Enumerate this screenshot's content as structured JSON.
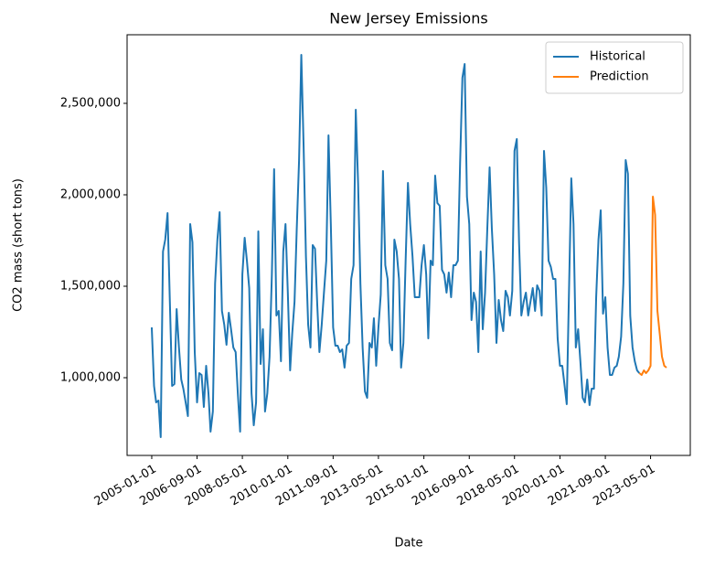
{
  "chart_data": {
    "type": "line",
    "title": "New Jersey Emissions",
    "x_label": "Date",
    "y_label": "CO2 mass (short tons)",
    "legend": "upper right",
    "grid": false,
    "xlim": [
      "2004-02-05",
      "2024-10-15"
    ],
    "xticks": [
      "2005-01-01",
      "2006-09-01",
      "2008-05-01",
      "2010-01-01",
      "2011-09-01",
      "2013-05-01",
      "2015-01-01",
      "2016-09-01",
      "2018-05-01",
      "2020-01-01",
      "2021-09-01",
      "2023-05-01"
    ],
    "ylim": [
      575000,
      2875000
    ],
    "yticks": [
      {
        "value": 1000000,
        "label": "1,000,000"
      },
      {
        "value": 1500000,
        "label": "1,500,000"
      },
      {
        "value": 2000000,
        "label": "2,000,000"
      },
      {
        "value": 2500000,
        "label": "2,500,000"
      }
    ],
    "series": [
      {
        "name": "Historical",
        "color": "#1f77b4",
        "x": [
          "2005-01-01",
          "2005-02-01",
          "2005-03-01",
          "2005-04-01",
          "2005-05-01",
          "2005-06-01",
          "2005-07-01",
          "2005-08-01",
          "2005-09-01",
          "2005-10-01",
          "2005-11-01",
          "2005-12-01",
          "2006-01-01",
          "2006-02-01",
          "2006-03-01",
          "2006-04-01",
          "2006-05-01",
          "2006-06-01",
          "2006-07-01",
          "2006-08-01",
          "2006-09-01",
          "2006-10-01",
          "2006-11-01",
          "2006-12-01",
          "2007-01-01",
          "2007-02-01",
          "2007-03-01",
          "2007-04-01",
          "2007-05-01",
          "2007-06-01",
          "2007-07-01",
          "2007-08-01",
          "2007-09-01",
          "2007-10-01",
          "2007-11-01",
          "2007-12-01",
          "2008-01-01",
          "2008-02-01",
          "2008-03-01",
          "2008-04-01",
          "2008-05-01",
          "2008-06-01",
          "2008-07-01",
          "2008-08-01",
          "2008-09-01",
          "2008-10-01",
          "2008-11-01",
          "2008-12-01",
          "2009-01-01",
          "2009-02-01",
          "2009-03-01",
          "2009-04-01",
          "2009-05-01",
          "2009-06-01",
          "2009-07-01",
          "2009-08-01",
          "2009-09-01",
          "2009-10-01",
          "2009-11-01",
          "2009-12-01",
          "2010-01-01",
          "2010-02-01",
          "2010-03-01",
          "2010-04-01",
          "2010-05-01",
          "2010-06-01",
          "2010-07-01",
          "2010-08-01",
          "2010-09-01",
          "2010-10-01",
          "2010-11-01",
          "2010-12-01",
          "2011-01-01",
          "2011-02-01",
          "2011-03-01",
          "2011-04-01",
          "2011-05-01",
          "2011-06-01",
          "2011-07-01",
          "2011-08-01",
          "2011-09-01",
          "2011-10-01",
          "2011-11-01",
          "2011-12-01",
          "2012-01-01",
          "2012-02-01",
          "2012-03-01",
          "2012-04-01",
          "2012-05-01",
          "2012-06-01",
          "2012-07-01",
          "2012-08-01",
          "2012-09-01",
          "2012-10-01",
          "2012-11-01",
          "2012-12-01",
          "2013-01-01",
          "2013-02-01",
          "2013-03-01",
          "2013-04-01",
          "2013-05-01",
          "2013-06-01",
          "2013-07-01",
          "2013-08-01",
          "2013-09-01",
          "2013-10-01",
          "2013-11-01",
          "2013-12-01",
          "2014-01-01",
          "2014-02-01",
          "2014-03-01",
          "2014-04-01",
          "2014-05-01",
          "2014-06-01",
          "2014-07-01",
          "2014-08-01",
          "2014-09-01",
          "2014-10-01",
          "2014-11-01",
          "2014-12-01",
          "2015-01-01",
          "2015-02-01",
          "2015-03-01",
          "2015-04-01",
          "2015-05-01",
          "2015-06-01",
          "2015-07-01",
          "2015-08-01",
          "2015-09-01",
          "2015-10-01",
          "2015-11-01",
          "2015-12-01",
          "2016-01-01",
          "2016-02-01",
          "2016-03-01",
          "2016-04-01",
          "2016-05-01",
          "2016-06-01",
          "2016-07-01",
          "2016-08-01",
          "2016-09-01",
          "2016-10-01",
          "2016-11-01",
          "2016-12-01",
          "2017-01-01",
          "2017-02-01",
          "2017-03-01",
          "2017-04-01",
          "2017-05-01",
          "2017-06-01",
          "2017-07-01",
          "2017-08-01",
          "2017-09-01",
          "2017-10-01",
          "2017-11-01",
          "2017-12-01",
          "2018-01-01",
          "2018-02-01",
          "2018-03-01",
          "2018-04-01",
          "2018-05-01",
          "2018-06-01",
          "2018-07-01",
          "2018-08-01",
          "2018-09-01",
          "2018-10-01",
          "2018-11-01",
          "2018-12-01",
          "2019-01-01",
          "2019-02-01",
          "2019-03-01",
          "2019-04-01",
          "2019-05-01",
          "2019-06-01",
          "2019-07-01",
          "2019-08-01",
          "2019-09-01",
          "2019-10-01",
          "2019-11-01",
          "2019-12-01",
          "2020-01-01",
          "2020-02-01",
          "2020-03-01",
          "2020-04-01",
          "2020-05-01",
          "2020-06-01",
          "2020-07-01",
          "2020-08-01",
          "2020-09-01",
          "2020-10-01",
          "2020-11-01",
          "2020-12-01",
          "2021-01-01",
          "2021-02-01",
          "2021-03-01",
          "2021-04-01",
          "2021-05-01",
          "2021-06-01",
          "2021-07-01",
          "2021-08-01",
          "2021-09-01",
          "2021-10-01",
          "2021-11-01",
          "2021-12-01",
          "2022-01-01",
          "2022-02-01",
          "2022-03-01",
          "2022-04-01",
          "2022-05-01",
          "2022-06-01",
          "2022-07-01",
          "2022-08-01",
          "2022-09-01",
          "2022-10-01",
          "2022-11-01",
          "2022-12-01"
        ],
        "values": [
          1275000,
          955000,
          865000,
          875000,
          675000,
          1690000,
          1755000,
          1900000,
          1415000,
          955000,
          965000,
          1375000,
          1165000,
          990000,
          940000,
          865000,
          790000,
          1840000,
          1740000,
          1140000,
          865000,
          1025000,
          1015000,
          840000,
          1065000,
          915000,
          705000,
          815000,
          1515000,
          1755000,
          1905000,
          1365000,
          1290000,
          1180000,
          1355000,
          1265000,
          1165000,
          1140000,
          915000,
          705000,
          1565000,
          1765000,
          1640000,
          1490000,
          915000,
          740000,
          865000,
          1800000,
          1075000,
          1265000,
          815000,
          915000,
          1115000,
          1565000,
          2140000,
          1340000,
          1365000,
          1090000,
          1690000,
          1840000,
          1465000,
          1040000,
          1240000,
          1415000,
          1815000,
          2190000,
          2765000,
          2265000,
          1665000,
          1290000,
          1165000,
          1725000,
          1705000,
          1390000,
          1140000,
          1290000,
          1465000,
          1640000,
          2325000,
          1840000,
          1275000,
          1175000,
          1175000,
          1140000,
          1155000,
          1055000,
          1175000,
          1190000,
          1540000,
          1615000,
          2465000,
          2065000,
          1515000,
          1165000,
          925000,
          890000,
          1190000,
          1165000,
          1325000,
          1065000,
          1275000,
          1455000,
          2130000,
          1615000,
          1540000,
          1190000,
          1150000,
          1755000,
          1690000,
          1540000,
          1055000,
          1190000,
          1640000,
          2065000,
          1840000,
          1665000,
          1440000,
          1440000,
          1440000,
          1615000,
          1725000,
          1565000,
          1215000,
          1640000,
          1615000,
          2105000,
          1955000,
          1940000,
          1590000,
          1565000,
          1465000,
          1575000,
          1440000,
          1615000,
          1615000,
          1640000,
          2175000,
          2640000,
          2715000,
          1990000,
          1840000,
          1315000,
          1465000,
          1415000,
          1140000,
          1690000,
          1265000,
          1465000,
          1815000,
          2150000,
          1815000,
          1565000,
          1190000,
          1425000,
          1315000,
          1255000,
          1475000,
          1440000,
          1340000,
          1475000,
          2240000,
          2305000,
          1740000,
          1340000,
          1415000,
          1465000,
          1340000,
          1415000,
          1490000,
          1365000,
          1505000,
          1475000,
          1340000,
          2240000,
          2040000,
          1640000,
          1605000,
          1540000,
          1540000,
          1215000,
          1065000,
          1065000,
          965000,
          855000,
          1465000,
          2090000,
          1840000,
          1165000,
          1265000,
          1090000,
          890000,
          865000,
          990000,
          850000,
          940000,
          940000,
          1440000,
          1755000,
          1915000,
          1350000,
          1440000,
          1165000,
          1015000,
          1015000,
          1055000,
          1065000,
          1115000,
          1225000,
          1515000,
          2190000,
          2115000,
          1340000,
          1165000,
          1090000,
          1040000,
          1025000
        ]
      },
      {
        "name": "Prediction",
        "color": "#ff7f0e",
        "x": [
          "2022-12-01",
          "2023-01-01",
          "2023-02-01",
          "2023-03-01",
          "2023-04-01",
          "2023-05-01",
          "2023-06-01",
          "2023-07-01",
          "2023-08-01",
          "2023-09-01",
          "2023-10-01",
          "2023-11-01",
          "2023-12-01"
        ],
        "values": [
          1025000,
          1015000,
          1040000,
          1025000,
          1040000,
          1065000,
          1990000,
          1890000,
          1365000,
          1240000,
          1115000,
          1065000,
          1055000
        ]
      }
    ]
  }
}
